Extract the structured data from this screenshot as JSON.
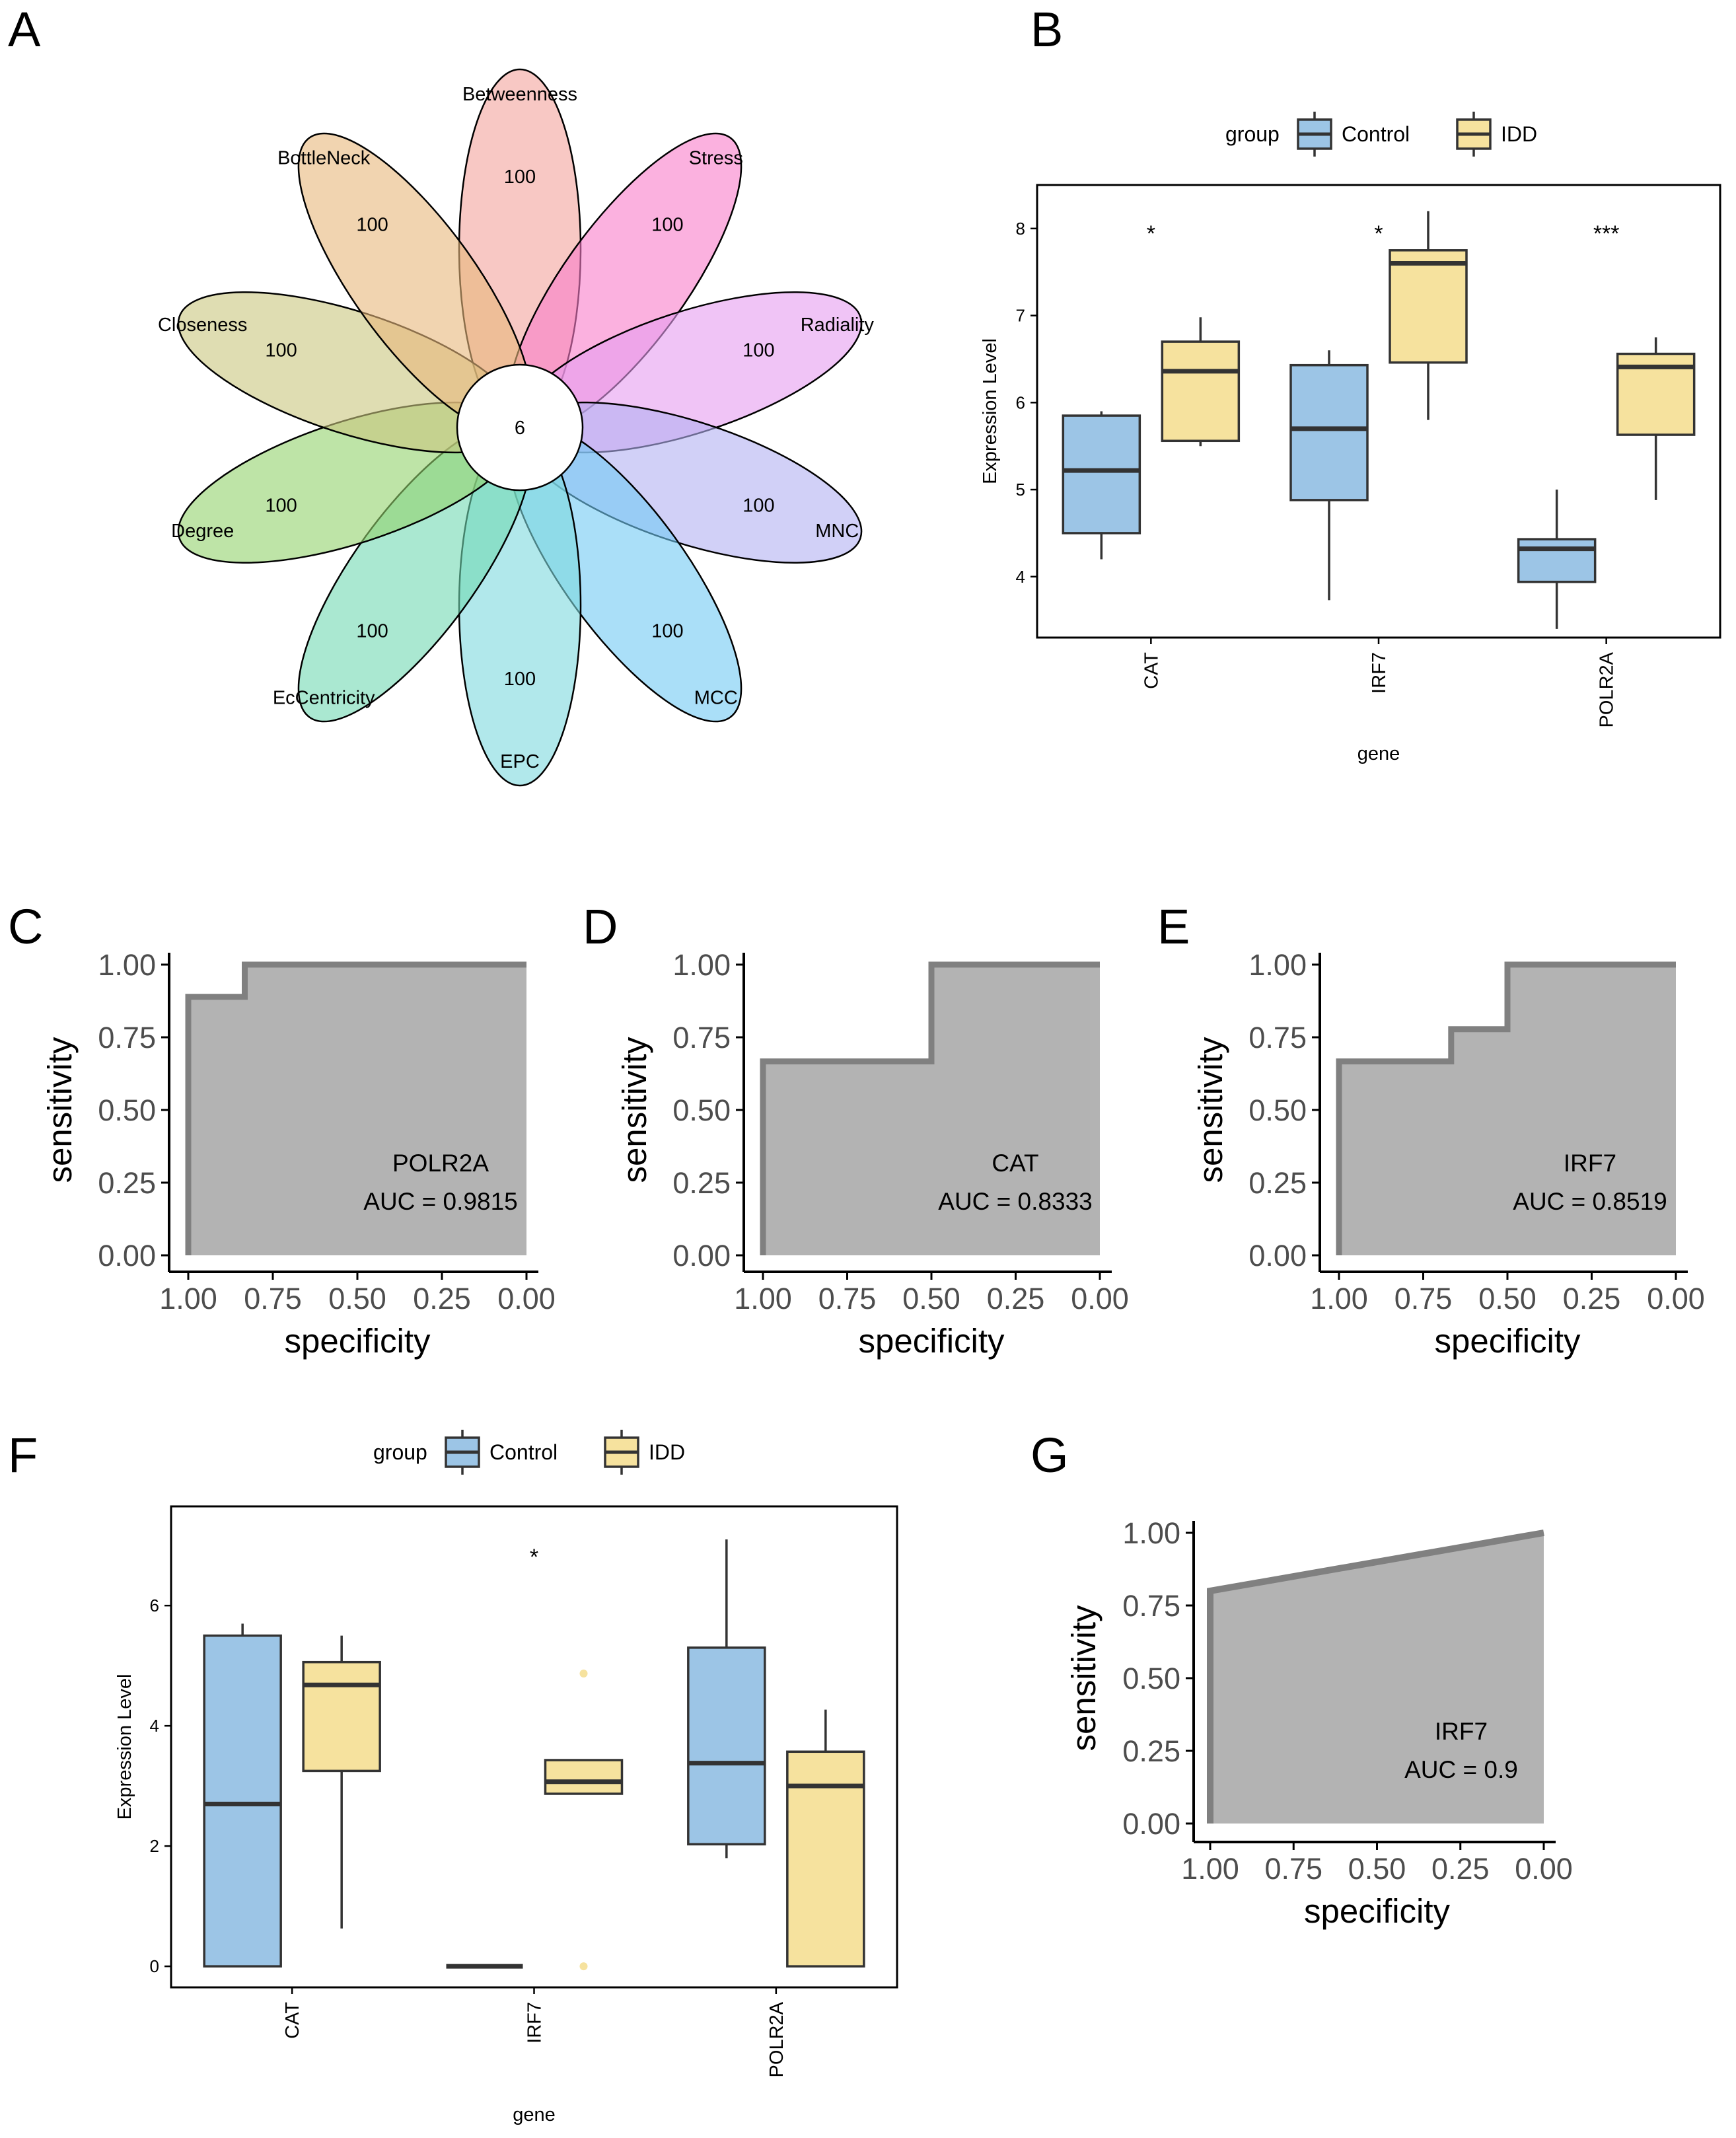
{
  "panel_labels": [
    "A",
    "B",
    "C",
    "D",
    "E",
    "F",
    "G"
  ],
  "chart_data": [
    {
      "panel": "A",
      "type": "flower",
      "center_value": "6",
      "petals": [
        {
          "name": "Betweenness",
          "value": "100",
          "color": "#f4a49c"
        },
        {
          "name": "Stress",
          "value": "100",
          "color": "#f97dc9"
        },
        {
          "name": "Radiality",
          "value": "100",
          "color": "#e69cf0"
        },
        {
          "name": "MNC",
          "value": "100",
          "color": "#b3b0f2"
        },
        {
          "name": "MCC",
          "value": "100",
          "color": "#72c9f3"
        },
        {
          "name": "EPC",
          "value": "100",
          "color": "#7dd9de"
        },
        {
          "name": "EcCentricity",
          "value": "100",
          "color": "#72d9b3"
        },
        {
          "name": "Degree",
          "value": "100",
          "color": "#93d26c"
        },
        {
          "name": "Closeness",
          "value": "100",
          "color": "#c9c77e"
        },
        {
          "name": "BottleNeck",
          "value": "100",
          "color": "#e7b77b"
        }
      ]
    },
    {
      "panel": "B",
      "type": "boxplot",
      "legend_title": "group",
      "groups": [
        {
          "name": "Control",
          "color": "#9cc5e6"
        },
        {
          "name": "IDD",
          "color": "#f6e29e"
        }
      ],
      "categories": [
        "CAT",
        "IRF7",
        "POLR2A"
      ],
      "significance": [
        "*",
        "*",
        "***"
      ],
      "xlabel": "gene",
      "ylabel": "Expression Level",
      "ylim": [
        3.3,
        8.5
      ],
      "yticks": [
        4,
        5,
        6,
        7,
        8
      ],
      "boxes": [
        {
          "category": "CAT",
          "group": "Control",
          "min": 4.2,
          "q1": 4.5,
          "median": 5.22,
          "q3": 5.85,
          "max": 5.9
        },
        {
          "category": "CAT",
          "group": "IDD",
          "min": 5.5,
          "q1": 5.56,
          "median": 6.36,
          "q3": 6.7,
          "max": 6.98
        },
        {
          "category": "IRF7",
          "group": "Control",
          "min": 3.73,
          "q1": 4.88,
          "median": 5.7,
          "q3": 6.43,
          "max": 6.6
        },
        {
          "category": "IRF7",
          "group": "IDD",
          "min": 5.8,
          "q1": 6.46,
          "median": 7.6,
          "q3": 7.75,
          "max": 8.2
        },
        {
          "category": "POLR2A",
          "group": "Control",
          "min": 3.4,
          "q1": 3.94,
          "median": 4.32,
          "q3": 4.43,
          "max": 5.0
        },
        {
          "category": "POLR2A",
          "group": "IDD",
          "min": 4.88,
          "q1": 5.63,
          "median": 6.41,
          "q3": 6.56,
          "max": 6.75
        }
      ]
    },
    {
      "panel": "C",
      "type": "roc",
      "gene": "POLR2A",
      "auc_label": "AUC = 0.9815",
      "xlabel": "specificity",
      "ylabel": "sensitivity",
      "xticks": [
        "1.00",
        "0.75",
        "0.50",
        "0.25",
        "0.00"
      ],
      "yticks": [
        "0.00",
        "0.25",
        "0.50",
        "0.75",
        "1.00"
      ],
      "curve": [
        [
          1.0,
          0.0
        ],
        [
          1.0,
          0.889
        ],
        [
          0.833,
          0.889
        ],
        [
          0.833,
          1.0
        ],
        [
          0.0,
          1.0
        ]
      ]
    },
    {
      "panel": "D",
      "type": "roc",
      "gene": "CAT",
      "auc_label": "AUC = 0.8333",
      "xlabel": "specificity",
      "ylabel": "sensitivity",
      "xticks": [
        "1.00",
        "0.75",
        "0.50",
        "0.25",
        "0.00"
      ],
      "yticks": [
        "0.00",
        "0.25",
        "0.50",
        "0.75",
        "1.00"
      ],
      "curve": [
        [
          1.0,
          0.0
        ],
        [
          1.0,
          0.667
        ],
        [
          0.5,
          0.667
        ],
        [
          0.5,
          1.0
        ],
        [
          0.0,
          1.0
        ]
      ]
    },
    {
      "panel": "E",
      "type": "roc",
      "gene": "IRF7",
      "auc_label": "AUC = 0.8519",
      "xlabel": "specificity",
      "ylabel": "sensitivity",
      "xticks": [
        "1.00",
        "0.75",
        "0.50",
        "0.25",
        "0.00"
      ],
      "yticks": [
        "0.00",
        "0.25",
        "0.50",
        "0.75",
        "1.00"
      ],
      "curve": [
        [
          1.0,
          0.0
        ],
        [
          1.0,
          0.667
        ],
        [
          0.667,
          0.667
        ],
        [
          0.667,
          0.778
        ],
        [
          0.5,
          0.778
        ],
        [
          0.5,
          1.0
        ],
        [
          0.0,
          1.0
        ]
      ]
    },
    {
      "panel": "F",
      "type": "boxplot",
      "legend_title": "group",
      "groups": [
        {
          "name": "Control",
          "color": "#9cc5e6"
        },
        {
          "name": "IDD",
          "color": "#f6e29e"
        }
      ],
      "categories": [
        "CAT",
        "IRF7",
        "POLR2A"
      ],
      "significance": [
        "",
        "*",
        ""
      ],
      "xlabel": "gene",
      "ylabel": "Expression Level",
      "ylim": [
        -0.35,
        7.65
      ],
      "yticks": [
        0,
        2,
        4,
        6
      ],
      "boxes": [
        {
          "category": "CAT",
          "group": "Control",
          "min": 0.0,
          "q1": 0.0,
          "median": 2.7,
          "q3": 5.5,
          "max": 5.7
        },
        {
          "category": "CAT",
          "group": "IDD",
          "min": 0.63,
          "q1": 3.25,
          "median": 4.68,
          "q3": 5.06,
          "max": 5.5
        },
        {
          "category": "IRF7",
          "group": "Control",
          "min": 0.0,
          "q1": 0.0,
          "median": 0.0,
          "q3": 0.0,
          "max": 0.0
        },
        {
          "category": "IRF7",
          "group": "IDD",
          "min": 2.87,
          "q1": 2.87,
          "median": 3.07,
          "q3": 3.43,
          "max": 3.43,
          "outliers": [
            4.87,
            0.0
          ]
        },
        {
          "category": "POLR2A",
          "group": "Control",
          "min": 1.8,
          "q1": 2.03,
          "median": 3.38,
          "q3": 5.3,
          "max": 7.1
        },
        {
          "category": "POLR2A",
          "group": "IDD",
          "min": 0.0,
          "q1": 0.0,
          "median": 3.0,
          "q3": 3.57,
          "max": 4.27
        }
      ]
    },
    {
      "panel": "G",
      "type": "roc",
      "gene": "IRF7",
      "auc_label": "AUC = 0.9",
      "xlabel": "specificity",
      "ylabel": "sensitivity",
      "xticks": [
        "1.00",
        "0.75",
        "0.50",
        "0.25",
        "0.00"
      ],
      "yticks": [
        "0.00",
        "0.25",
        "0.50",
        "0.75",
        "1.00"
      ],
      "curve": [
        [
          1.0,
          0.0
        ],
        [
          1.0,
          0.8
        ],
        [
          0.0,
          1.0
        ]
      ]
    }
  ]
}
